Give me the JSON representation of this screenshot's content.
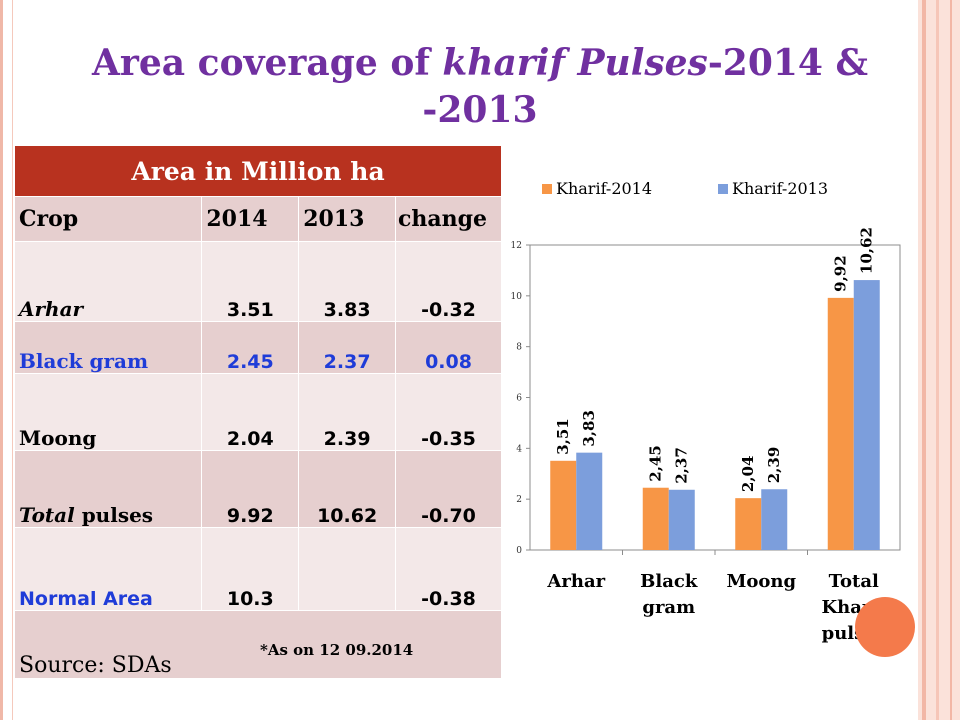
{
  "title": {
    "part1": "Area coverage of ",
    "italic": "kharif Pulses",
    "part2": "-2014 & -2013"
  },
  "table": {
    "caption": "Area in Million ha",
    "columns": [
      "Crop",
      "2014",
      "2013",
      "change"
    ],
    "rows": [
      {
        "crop": "Arhar",
        "v2014": "3.51",
        "v2013": "3.83",
        "change": "-0.32"
      },
      {
        "crop": "Black gram",
        "v2014": "2.45",
        "v2013": "2.37",
        "change": "0.08"
      },
      {
        "crop": "Moong",
        "v2014": "2.04",
        "v2013": "2.39",
        "change": "-0.35"
      },
      {
        "crop_italic": "Total",
        "crop_rest": " pulses",
        "v2014": "9.92",
        "v2013": "10.62",
        "change": "-0.70"
      },
      {
        "crop": "Normal Area",
        "v2014": "10.3",
        "v2013": "",
        "change": "-0.38"
      }
    ],
    "source": "Source: SDAs",
    "note": "*As on 12 09.2014"
  },
  "chart_data": {
    "type": "bar",
    "categories": [
      [
        "Arhar"
      ],
      [
        "Black",
        "gram"
      ],
      [
        "Moong"
      ],
      [
        "Total",
        "Kharif",
        "pulses"
      ]
    ],
    "series": [
      {
        "name": "Kharif-2014",
        "color": "#f79646",
        "values": [
          3.51,
          2.45,
          2.04,
          9.92
        ],
        "labels": [
          "3,51",
          "2,45",
          "2,04",
          "9,92"
        ]
      },
      {
        "name": "Kharif-2013",
        "color": "#7c9edc",
        "values": [
          3.83,
          2.37,
          2.39,
          10.62
        ],
        "labels": [
          "3,83",
          "2,37",
          "2,39",
          "10,62"
        ]
      }
    ],
    "yticks": [
      "0",
      "2",
      "4",
      "6",
      "8",
      "10",
      "12"
    ],
    "ylim": [
      0,
      12
    ],
    "legend_position": "top",
    "grid": false
  }
}
